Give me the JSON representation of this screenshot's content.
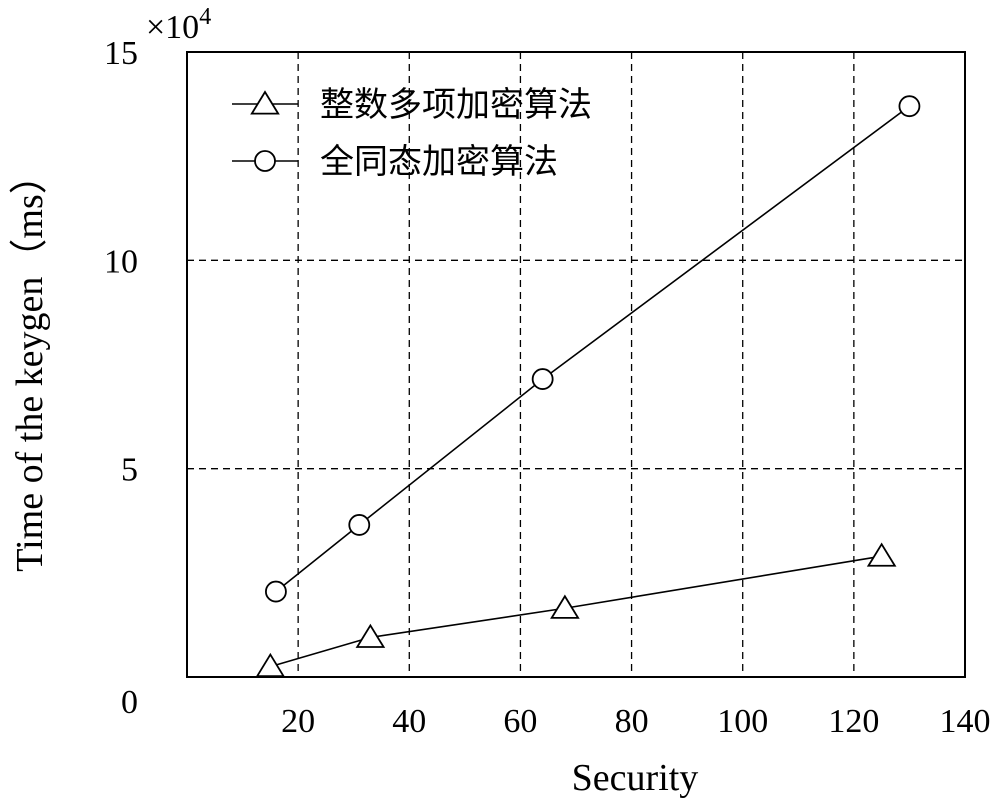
{
  "chart_data": {
    "type": "line",
    "xlabel": "Security",
    "ylabel": "Time of the keygen（ms）",
    "y_multiplier": "×10⁴",
    "xlim": [
      0,
      140
    ],
    "ylim": [
      0,
      150000
    ],
    "x_ticks": [
      20,
      40,
      60,
      80,
      100,
      120,
      140
    ],
    "y_ticks": [
      0,
      50000,
      100000,
      150000
    ],
    "x_tick_labels": [
      "20",
      "40",
      "60",
      "80",
      "100",
      "120",
      "140"
    ],
    "y_tick_labels": [
      "0",
      "5",
      "10",
      "15"
    ],
    "grid": true,
    "legend_position": "top-left",
    "series": [
      {
        "name": "整数多项加密算法",
        "marker": "triangle",
        "x": [
          15,
          33,
          68,
          125
        ],
        "y": [
          2500,
          9500,
          16500,
          29000
        ]
      },
      {
        "name": "全同态加密算法",
        "marker": "circle",
        "x": [
          16,
          31,
          64,
          130
        ],
        "y": [
          20500,
          36500,
          71500,
          137000
        ]
      }
    ]
  }
}
